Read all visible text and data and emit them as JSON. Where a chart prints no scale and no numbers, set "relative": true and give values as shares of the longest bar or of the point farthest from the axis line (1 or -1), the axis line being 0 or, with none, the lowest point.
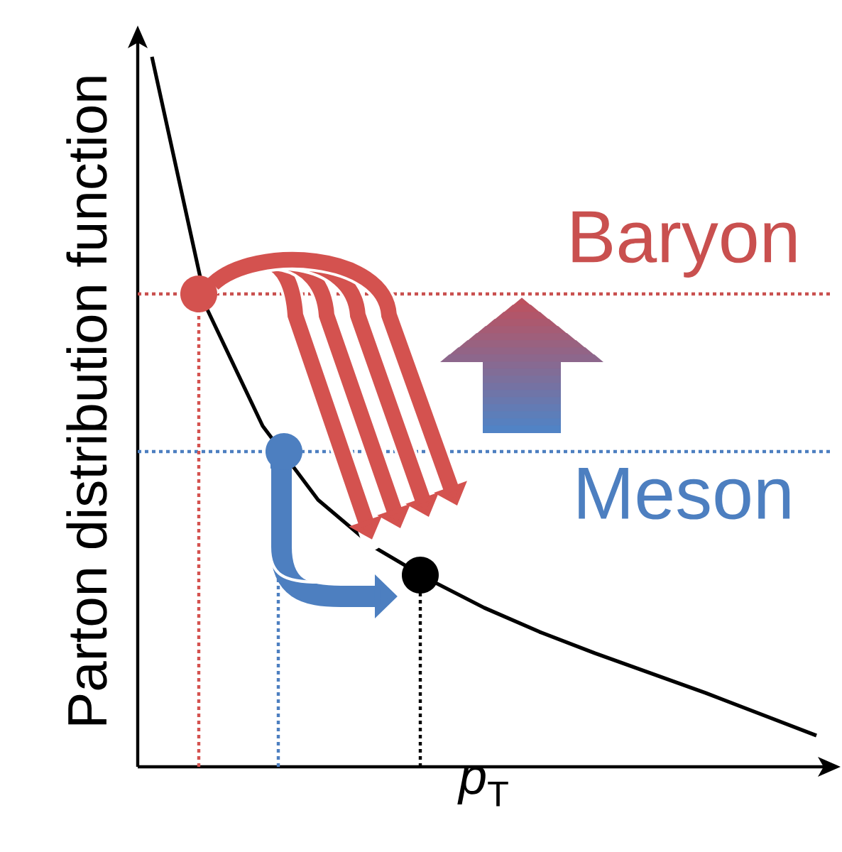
{
  "chart_data": {
    "type": "line",
    "relative": true,
    "tick_labels": false,
    "xlabel": "*p*$_{T}$",
    "ylabel": "Parton distribution function",
    "categories": [
      null,
      null,
      null,
      null,
      null,
      null,
      null,
      null,
      null,
      null,
      null,
      null,
      null
    ],
    "series": [
      {
        "color": "#000000",
        "values": [
          1.0,
          0.644,
          0.48,
          0.376,
          0.31,
          0.264,
          0.224,
          0.19,
          0.16,
          0.132,
          0.104,
          0.074,
          0.044
        ]
      }
    ],
    "ref_lines": [
      {
        "axis": "y",
        "value": 0.666,
        "label": "Baryon",
        "color": "#c9504f",
        "line_style": "dotted"
      },
      {
        "axis": "y",
        "value": 0.444,
        "label": "Meson",
        "color": "#4d7fc0",
        "line_style": "dotted"
      }
    ]
  }
}
